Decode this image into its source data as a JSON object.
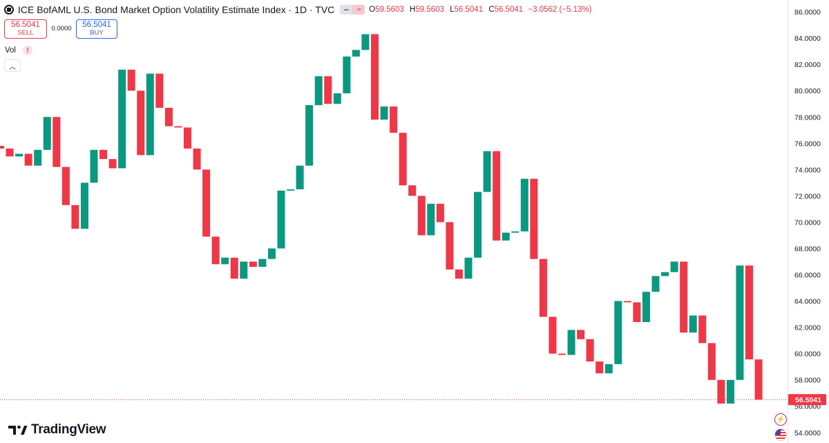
{
  "header": {
    "title": "ICE BofAML U.S. Bond Market Option Volatility Estimate Index · 1D · TVC",
    "open_label": "O",
    "open": "59.5603",
    "high_label": "H",
    "high": "59.5603",
    "low_label": "L",
    "low": "56.5041",
    "close_label": "C",
    "close": "56.5041",
    "change": "−3.0562 (−5.13%)"
  },
  "trade": {
    "sell_price": "56.5041",
    "sell_label": "SELL",
    "spread": "0.0000",
    "buy_price": "56.5041",
    "buy_label": "BUY"
  },
  "vol_label": "Vol",
  "vol_warning": "!",
  "collapse_icon": "^",
  "logo_text": "TradingView",
  "colors": {
    "up": "#089981",
    "down": "#f23645",
    "accent": "#2962ff"
  },
  "chart_data": {
    "type": "candlestick",
    "price_scale": {
      "ticks": [
        "86.0000",
        "84.0000",
        "82.0000",
        "80.0000",
        "78.0000",
        "76.0000",
        "74.0000",
        "72.0000",
        "70.0000",
        "68.0000",
        "66.0000",
        "64.0000",
        "62.0000",
        "60.0000",
        "58.0000",
        "56.0000",
        "54.0000"
      ],
      "range": [
        53.2,
        86.9
      ]
    },
    "last_price_label": "56.5041",
    "candles": [
      [
        75.8,
        75.8,
        75.6,
        75.6
      ],
      [
        75.6,
        75.6,
        75.0,
        75.0
      ],
      [
        75.0,
        75.2,
        75.0,
        75.2
      ],
      [
        75.2,
        75.2,
        74.3,
        74.3
      ],
      [
        74.3,
        75.5,
        74.3,
        75.5
      ],
      [
        75.5,
        78.0,
        75.5,
        78.0
      ],
      [
        78.0,
        78.0,
        74.2,
        74.2
      ],
      [
        74.2,
        74.2,
        71.3,
        71.3
      ],
      [
        71.3,
        71.3,
        69.5,
        69.5
      ],
      [
        69.5,
        73.0,
        69.5,
        73.0
      ],
      [
        73.0,
        75.5,
        73.0,
        75.5
      ],
      [
        75.5,
        75.5,
        74.8,
        74.8
      ],
      [
        74.8,
        74.8,
        74.1,
        74.1
      ],
      [
        74.1,
        81.6,
        74.1,
        81.6
      ],
      [
        81.6,
        81.6,
        80.0,
        80.0
      ],
      [
        80.0,
        80.0,
        75.1,
        75.1
      ],
      [
        75.1,
        81.3,
        75.1,
        81.3
      ],
      [
        81.3,
        81.3,
        78.7,
        78.7
      ],
      [
        78.7,
        78.7,
        77.3,
        77.3
      ],
      [
        77.3,
        77.3,
        77.2,
        77.2
      ],
      [
        77.2,
        77.2,
        75.6,
        75.6
      ],
      [
        75.6,
        75.6,
        74.0,
        74.0
      ],
      [
        74.0,
        74.0,
        68.9,
        68.9
      ],
      [
        68.9,
        68.9,
        66.8,
        66.8
      ],
      [
        66.8,
        67.3,
        66.8,
        67.3
      ],
      [
        67.3,
        67.3,
        65.7,
        65.7
      ],
      [
        65.7,
        67.0,
        65.7,
        67.0
      ],
      [
        67.0,
        67.0,
        66.6,
        66.6
      ],
      [
        66.6,
        67.2,
        66.6,
        67.2
      ],
      [
        67.2,
        68.0,
        67.2,
        68.0
      ],
      [
        68.0,
        72.4,
        68.0,
        72.4
      ],
      [
        72.4,
        72.5,
        72.4,
        72.5
      ],
      [
        72.5,
        74.3,
        72.5,
        74.3
      ],
      [
        74.3,
        78.9,
        74.3,
        78.9
      ],
      [
        78.9,
        81.1,
        78.9,
        81.1
      ],
      [
        81.1,
        81.1,
        79.0,
        79.0
      ],
      [
        79.0,
        79.8,
        79.0,
        79.8
      ],
      [
        79.8,
        82.6,
        79.8,
        82.6
      ],
      [
        82.6,
        83.1,
        82.6,
        83.1
      ],
      [
        83.1,
        84.3,
        83.1,
        84.3
      ],
      [
        84.3,
        84.3,
        77.8,
        77.8
      ],
      [
        77.8,
        78.8,
        77.8,
        78.8
      ],
      [
        78.8,
        78.8,
        76.8,
        76.8
      ],
      [
        76.8,
        76.8,
        72.8,
        72.8
      ],
      [
        72.8,
        72.8,
        72.0,
        72.0
      ],
      [
        72.0,
        72.0,
        69.0,
        69.0
      ],
      [
        69.0,
        71.4,
        69.0,
        71.4
      ],
      [
        71.4,
        71.4,
        70.0,
        70.0
      ],
      [
        70.0,
        70.0,
        66.4,
        66.4
      ],
      [
        66.4,
        66.4,
        65.7,
        65.7
      ],
      [
        65.7,
        67.3,
        65.7,
        67.3
      ],
      [
        67.3,
        72.3,
        67.3,
        72.3
      ],
      [
        72.3,
        75.4,
        72.3,
        75.4
      ],
      [
        75.4,
        75.4,
        68.6,
        68.6
      ],
      [
        68.6,
        69.2,
        68.6,
        69.2
      ],
      [
        69.2,
        69.3,
        69.2,
        69.3
      ],
      [
        69.3,
        73.3,
        69.3,
        73.3
      ],
      [
        73.3,
        73.3,
        67.2,
        67.2
      ],
      [
        67.2,
        67.2,
        62.8,
        62.8
      ],
      [
        62.8,
        62.8,
        60.0,
        60.0
      ],
      [
        60.0,
        60.0,
        59.9,
        59.9
      ],
      [
        59.9,
        61.8,
        59.9,
        61.8
      ],
      [
        61.8,
        61.8,
        61.1,
        61.1
      ],
      [
        61.1,
        61.1,
        59.4,
        59.4
      ],
      [
        59.4,
        59.4,
        58.5,
        58.5
      ],
      [
        58.5,
        59.2,
        58.5,
        59.2
      ],
      [
        59.2,
        64.0,
        59.2,
        64.0
      ],
      [
        64.0,
        64.0,
        63.9,
        63.9
      ],
      [
        63.9,
        63.9,
        62.4,
        62.4
      ],
      [
        62.4,
        64.7,
        62.4,
        64.7
      ],
      [
        64.7,
        65.9,
        64.7,
        65.9
      ],
      [
        65.9,
        66.2,
        65.9,
        66.2
      ],
      [
        66.2,
        67.0,
        66.2,
        67.0
      ],
      [
        67.0,
        67.0,
        61.6,
        61.6
      ],
      [
        61.6,
        62.9,
        61.6,
        62.9
      ],
      [
        62.9,
        62.9,
        60.8,
        60.8
      ],
      [
        60.8,
        60.8,
        58.0,
        58.0
      ],
      [
        58.0,
        58.0,
        56.2,
        56.2
      ],
      [
        56.2,
        58.0,
        56.2,
        58.0
      ],
      [
        58.0,
        66.7,
        58.0,
        66.7
      ],
      [
        66.7,
        66.7,
        59.56,
        59.56
      ],
      [
        59.56,
        59.56,
        56.5,
        56.5
      ]
    ]
  }
}
